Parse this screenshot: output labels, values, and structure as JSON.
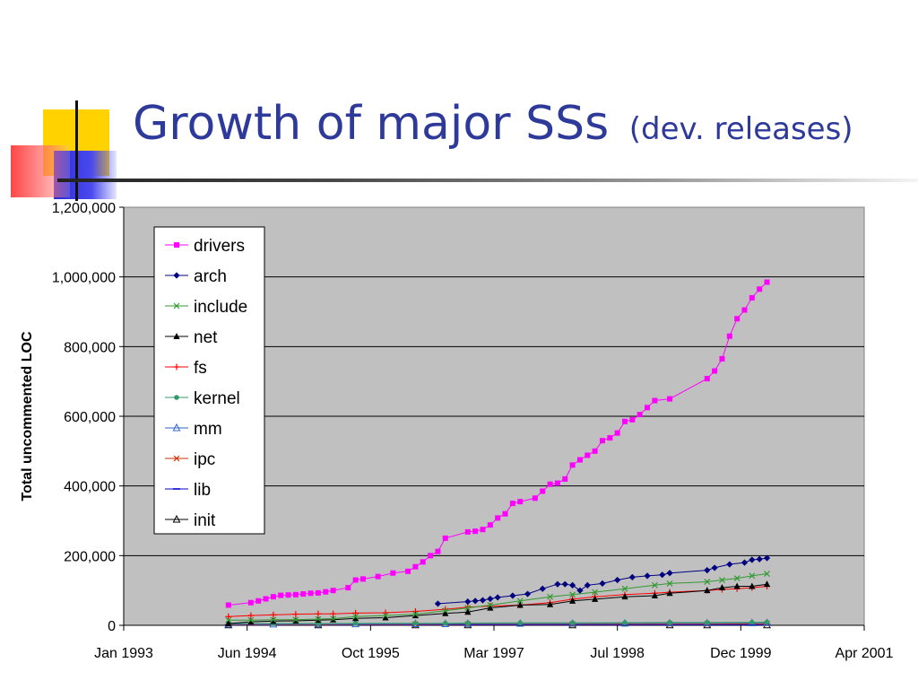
{
  "slide": {
    "title": "Growth of major SSs",
    "subtitle": "(dev. releases)"
  },
  "colors": {
    "title": "#2d3a9a",
    "plot_background": "#c0c0c0",
    "deco_yellow": "#ffd200",
    "deco_blue": "#3333dd",
    "deco_red": "#ff3a3a"
  },
  "chart_data": {
    "type": "line",
    "title": "",
    "xlabel": "",
    "ylabel": "Total uncommented LOC",
    "y_ticks": [
      "0",
      "200,000",
      "400,000",
      "600,000",
      "800,000",
      "1,000,000",
      "1,200,000"
    ],
    "x_ticks": [
      "Jan 1993",
      "Jun 1994",
      "Oct 1995",
      "Mar 1997",
      "Jul 1998",
      "Dec 1999",
      "Apr 2001"
    ],
    "xlim": [
      "1993-01",
      "2001-04"
    ],
    "ylim": [
      0,
      1200000
    ],
    "grid": true,
    "legend_position": "top-left inside plot",
    "series": [
      {
        "name": "drivers",
        "color": "#ff00ff",
        "marker": "square",
        "x": [
          "1994-03",
          "1994-06",
          "1994-07",
          "1994-08",
          "1994-09",
          "1994-10",
          "1994-11",
          "1994-12",
          "1995-01",
          "1995-02",
          "1995-03",
          "1995-04",
          "1995-05",
          "1995-07",
          "1995-08",
          "1995-09",
          "1995-11",
          "1996-01",
          "1996-03",
          "1996-04",
          "1996-05",
          "1996-06",
          "1996-07",
          "1996-08",
          "1996-11",
          "1996-12",
          "1997-01",
          "1997-02",
          "1997-03",
          "1997-04",
          "1997-05",
          "1997-06",
          "1997-08",
          "1997-09",
          "1997-10",
          "1997-11",
          "1997-12",
          "1998-01",
          "1998-02",
          "1998-03",
          "1998-04",
          "1998-05",
          "1998-06",
          "1998-07",
          "1998-08",
          "1998-09",
          "1998-10",
          "1998-11",
          "1998-12",
          "1999-02",
          "1999-07",
          "1999-08",
          "1999-09",
          "1999-10",
          "1999-11",
          "1999-12",
          "2000-01",
          "2000-02",
          "2000-03"
        ],
        "values": [
          58000,
          65000,
          70000,
          76000,
          82000,
          86000,
          87000,
          88000,
          90000,
          92000,
          93000,
          96000,
          100000,
          108000,
          130000,
          133000,
          140000,
          150000,
          155000,
          168000,
          182000,
          200000,
          212000,
          250000,
          268000,
          270000,
          275000,
          288000,
          308000,
          320000,
          350000,
          355000,
          365000,
          385000,
          405000,
          408000,
          420000,
          460000,
          475000,
          488000,
          500000,
          530000,
          538000,
          552000,
          585000,
          590000,
          605000,
          625000,
          645000,
          650000,
          708000,
          730000,
          765000,
          830000,
          880000,
          905000,
          940000,
          965000,
          985000
        ]
      },
      {
        "name": "arch",
        "color": "#000080",
        "marker": "diamond",
        "x": [
          "1996-07",
          "1996-11",
          "1996-12",
          "1997-01",
          "1997-02",
          "1997-03",
          "1997-05",
          "1997-07",
          "1997-09",
          "1997-11",
          "1997-12",
          "1998-01",
          "1998-02",
          "1998-03",
          "1998-05",
          "1998-07",
          "1998-09",
          "1998-11",
          "1999-01",
          "1999-02",
          "1999-07",
          "1999-08",
          "1999-10",
          "1999-12",
          "2000-01",
          "2000-02",
          "2000-03"
        ],
        "values": [
          62000,
          68000,
          70000,
          72000,
          76000,
          80000,
          85000,
          90000,
          105000,
          118000,
          118000,
          115000,
          100000,
          115000,
          120000,
          130000,
          138000,
          142000,
          145000,
          150000,
          158000,
          165000,
          175000,
          180000,
          188000,
          190000,
          193000
        ]
      },
      {
        "name": "include",
        "color": "#339933",
        "marker": "x",
        "x": [
          "1994-03",
          "1994-06",
          "1994-09",
          "1994-12",
          "1995-03",
          "1995-05",
          "1995-08",
          "1995-12",
          "1996-04",
          "1996-08",
          "1996-11",
          "1997-02",
          "1997-06",
          "1997-10",
          "1998-01",
          "1998-04",
          "1998-08",
          "1998-12",
          "1999-02",
          "1999-07",
          "1999-09",
          "1999-11",
          "2000-01",
          "2000-03"
        ],
        "values": [
          15000,
          15000,
          16000,
          16000,
          18000,
          19000,
          25000,
          28000,
          32000,
          42000,
          50000,
          58000,
          70000,
          82000,
          88000,
          95000,
          105000,
          115000,
          120000,
          125000,
          130000,
          135000,
          142000,
          148000
        ]
      },
      {
        "name": "net",
        "color": "#000000",
        "marker": "triangle",
        "x": [
          "1994-03",
          "1994-06",
          "1994-09",
          "1994-12",
          "1995-03",
          "1995-05",
          "1995-08",
          "1995-12",
          "1996-04",
          "1996-08",
          "1996-11",
          "1997-02",
          "1997-06",
          "1997-10",
          "1998-01",
          "1998-04",
          "1998-08",
          "1998-12",
          "1999-02",
          "1999-07",
          "1999-09",
          "1999-11",
          "2000-01",
          "2000-03"
        ],
        "values": [
          5000,
          10000,
          12000,
          13000,
          15000,
          16000,
          20000,
          22000,
          28000,
          34000,
          38000,
          50000,
          58000,
          60000,
          70000,
          75000,
          82000,
          85000,
          92000,
          100000,
          108000,
          112000,
          112000,
          118000
        ]
      },
      {
        "name": "fs",
        "color": "#ff0000",
        "marker": "plus",
        "x": [
          "1994-03",
          "1994-06",
          "1994-09",
          "1994-12",
          "1995-03",
          "1995-05",
          "1995-08",
          "1995-12",
          "1996-04",
          "1996-08",
          "1996-11",
          "1997-02",
          "1997-06",
          "1997-10",
          "1998-01",
          "1998-04",
          "1998-08",
          "1998-12",
          "1999-02",
          "1999-07",
          "1999-09",
          "1999-11",
          "2000-01",
          "2000-03"
        ],
        "values": [
          25000,
          28000,
          30000,
          32000,
          33000,
          33000,
          35000,
          36000,
          40000,
          46000,
          52000,
          55000,
          58000,
          65000,
          75000,
          82000,
          88000,
          92000,
          95000,
          100000,
          103000,
          105000,
          108000,
          112000
        ]
      },
      {
        "name": "kernel",
        "color": "#339966",
        "marker": "circle",
        "x": [
          "1994-03",
          "1994-09",
          "1995-03",
          "1995-08",
          "1996-04",
          "1996-08",
          "1996-11",
          "1997-06",
          "1998-01",
          "1998-08",
          "1999-02",
          "1999-07",
          "2000-01",
          "2000-03"
        ],
        "values": [
          5000,
          5000,
          5000,
          5500,
          6000,
          6000,
          6500,
          7000,
          7000,
          7500,
          8000,
          8000,
          8500,
          9000
        ]
      },
      {
        "name": "mm",
        "color": "#3366cc",
        "marker": "triangle-open",
        "x": [
          "1994-03",
          "1994-09",
          "1995-03",
          "1995-08",
          "1996-04",
          "1996-08",
          "1996-11",
          "1997-06",
          "1998-01",
          "1998-08",
          "1999-02",
          "1999-07",
          "2000-01",
          "2000-03"
        ],
        "values": [
          3000,
          3000,
          3500,
          3500,
          4000,
          4000,
          4500,
          5000,
          5000,
          5500,
          6000,
          6000,
          6500,
          7000
        ]
      },
      {
        "name": "ipc",
        "color": "#cc3300",
        "marker": "x",
        "x": [
          "1994-03",
          "1995-03",
          "1996-04",
          "1996-11",
          "1998-01",
          "1999-02",
          "1999-07",
          "2000-03"
        ],
        "values": [
          2000,
          2000,
          2500,
          3000,
          3000,
          3500,
          3500,
          4000
        ]
      },
      {
        "name": "lib",
        "color": "#0000cc",
        "marker": "dash",
        "x": [
          "1994-03",
          "1995-03",
          "1996-04",
          "1996-11",
          "1998-01",
          "1999-02",
          "1999-07",
          "2000-03"
        ],
        "values": [
          1000,
          1000,
          1000,
          1200,
          1200,
          1300,
          1300,
          1400
        ]
      },
      {
        "name": "init",
        "color": "#000000",
        "marker": "triangle-open",
        "x": [
          "1994-03",
          "1995-03",
          "1996-04",
          "1996-11",
          "1998-01",
          "1999-02",
          "1999-07",
          "2000-03"
        ],
        "values": [
          500,
          500,
          600,
          600,
          700,
          700,
          800,
          800
        ]
      }
    ]
  }
}
